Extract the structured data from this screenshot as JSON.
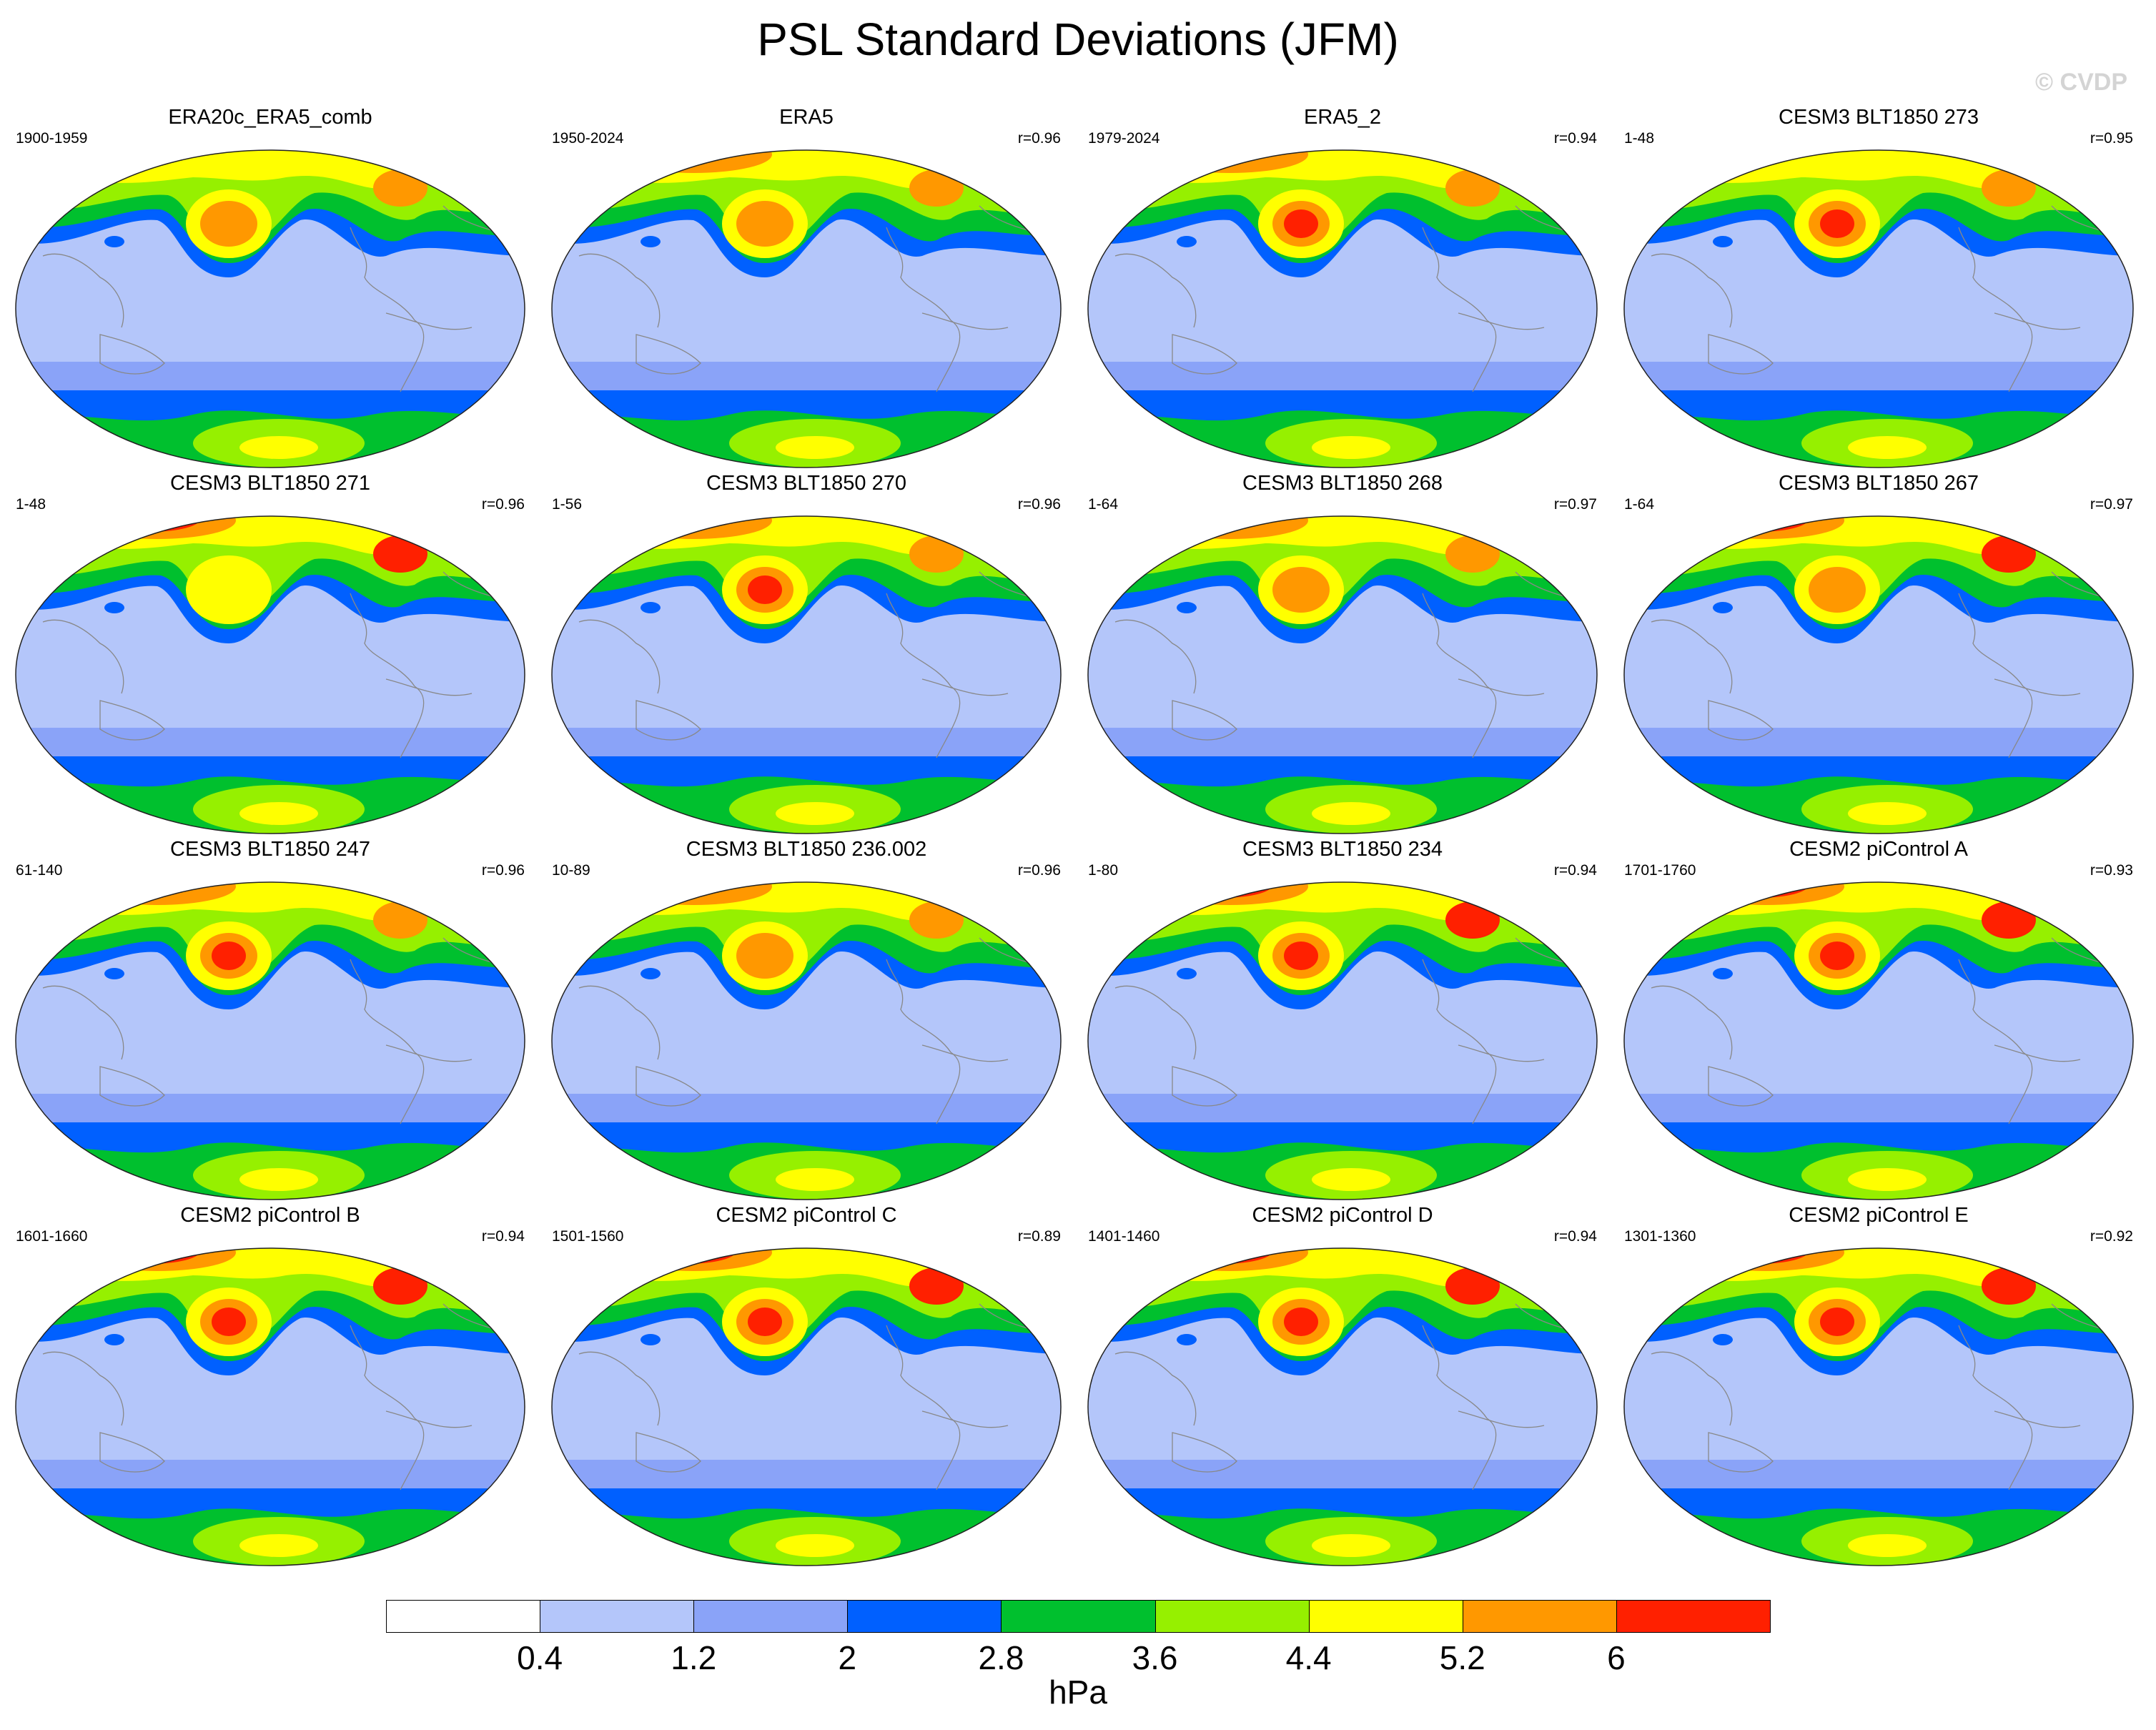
{
  "title": "PSL Standard Deviations (JFM)",
  "watermark": "© CVDP",
  "colorbar": {
    "labels": [
      "0.4",
      "1.2",
      "2",
      "2.8",
      "3.6",
      "4.4",
      "5.2",
      "6"
    ],
    "colors": [
      "#ffffff",
      "#b4c6fa",
      "#8aa3f8",
      "#0060ff",
      "#00c02e",
      "#96f000",
      "#ffff00",
      "#ff9800",
      "#ff2000"
    ],
    "units": "hPa"
  },
  "panels": [
    {
      "title": "ERA20c_ERA5_comb",
      "years": "1900-1959",
      "corr": "",
      "north_max": 4,
      "pacific_max": 5
    },
    {
      "title": "ERA5",
      "years": "1950-2024",
      "corr": "r=0.96",
      "north_max": 5,
      "pacific_max": 5
    },
    {
      "title": "ERA5_2",
      "years": "1979-2024",
      "corr": "r=0.94",
      "north_max": 5,
      "pacific_max": 6
    },
    {
      "title": "CESM3 BLT1850 273",
      "years": "1-48",
      "corr": "r=0.95",
      "north_max": 4,
      "pacific_max": 6
    },
    {
      "title": "CESM3 BLT1850 271",
      "years": "1-48",
      "corr": "r=0.96",
      "north_max": 6,
      "pacific_max": 4
    },
    {
      "title": "CESM3 BLT1850 270",
      "years": "1-56",
      "corr": "r=0.96",
      "north_max": 5,
      "pacific_max": 6
    },
    {
      "title": "CESM3 BLT1850 268",
      "years": "1-64",
      "corr": "r=0.97",
      "north_max": 5,
      "pacific_max": 5
    },
    {
      "title": "CESM3 BLT1850 267",
      "years": "1-64",
      "corr": "r=0.97",
      "north_max": 6,
      "pacific_max": 5
    },
    {
      "title": "CESM3 BLT1850 247",
      "years": "61-140",
      "corr": "r=0.96",
      "north_max": 5,
      "pacific_max": 6
    },
    {
      "title": "CESM3 BLT1850 236.002",
      "years": "10-89",
      "corr": "r=0.96",
      "north_max": 5,
      "pacific_max": 5
    },
    {
      "title": "CESM3 BLT1850 234",
      "years": "1-80",
      "corr": "r=0.94",
      "north_max": 6,
      "pacific_max": 6
    },
    {
      "title": "CESM2 piControl A",
      "years": "1701-1760",
      "corr": "r=0.93",
      "north_max": 6,
      "pacific_max": 6
    },
    {
      "title": "CESM2 piControl B",
      "years": "1601-1660",
      "corr": "r=0.94",
      "north_max": 6,
      "pacific_max": 6
    },
    {
      "title": "CESM2 piControl C",
      "years": "1501-1560",
      "corr": "r=0.89",
      "north_max": 6,
      "pacific_max": 6
    },
    {
      "title": "CESM2 piControl D",
      "years": "1401-1460",
      "corr": "r=0.94",
      "north_max": 6,
      "pacific_max": 6
    },
    {
      "title": "CESM2 piControl E",
      "years": "1301-1360",
      "corr": "r=0.92",
      "north_max": 6,
      "pacific_max": 6
    }
  ]
}
